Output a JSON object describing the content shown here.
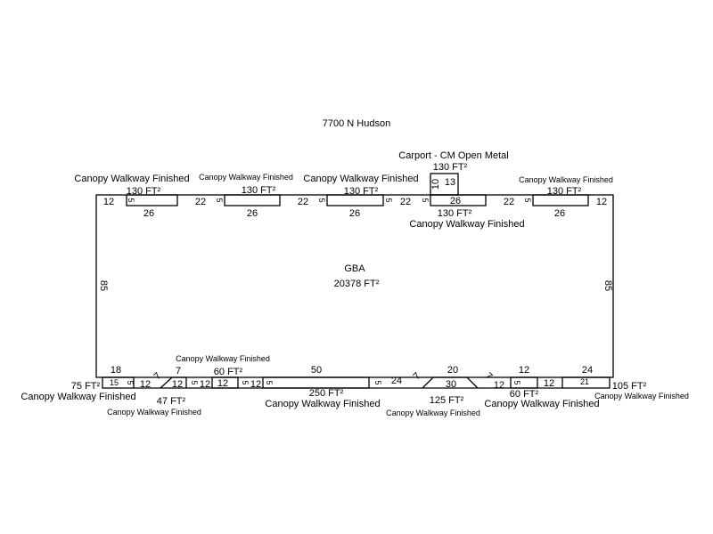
{
  "title": "7700 N Hudson",
  "gba": {
    "label": "GBA",
    "area": "20378 FT²"
  },
  "carport": {
    "label": "Carport - CM Open Metal",
    "area": "130 FT²",
    "dims": [
      "10",
      "13"
    ]
  },
  "canopy_label": "Canopy Walkway Finished",
  "top_canopies": [
    {
      "area": "130 FT²",
      "width": "26",
      "depth": "5"
    },
    {
      "area": "130 FT²",
      "width": "26",
      "depth": "5"
    },
    {
      "area": "130 FT²",
      "width": "26",
      "depth": "5"
    },
    {
      "area": "130 FT²",
      "width": "26",
      "depth": "5"
    },
    {
      "area": "130 FT²",
      "width": "26",
      "depth": "5"
    }
  ],
  "top_gaps": [
    "12",
    "22",
    "22",
    "22",
    "22",
    "12"
  ],
  "side_dims": [
    "85",
    "85"
  ],
  "bottom_canopies": [
    {
      "area": "75 FT²",
      "dims": [
        "18",
        "15",
        "5"
      ]
    },
    {
      "area": "47 FT²",
      "dims": [
        "7",
        "7",
        "12",
        "5"
      ]
    },
    {
      "area": "60 FT²",
      "dims": [
        "12",
        "5"
      ]
    },
    {
      "area": "250 FT²",
      "dims": [
        "50",
        "5"
      ]
    },
    {
      "area": "125 FT²",
      "dims": [
        "7",
        "20",
        "30",
        "7"
      ]
    },
    {
      "area": "60 FT²",
      "dims": [
        "12",
        "5"
      ]
    },
    {
      "area": "105 FT²",
      "dims": [
        "24",
        "21"
      ]
    }
  ],
  "bottom_gaps": [
    "12",
    "12",
    "12",
    "24",
    "12",
    "12"
  ]
}
